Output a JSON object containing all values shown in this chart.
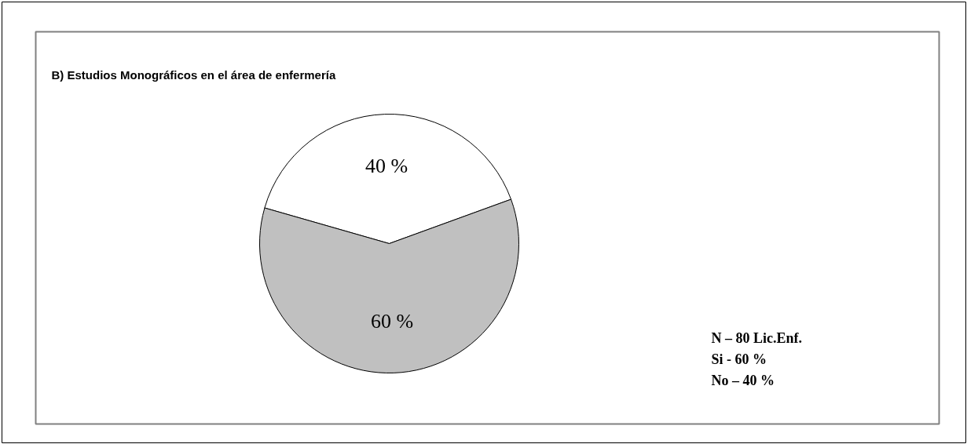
{
  "chart_data": {
    "type": "pie",
    "title": "B) Estudios Monográficos en el área de enfermería",
    "categories": [
      null,
      null
    ],
    "values": [
      40,
      60
    ],
    "colors": [
      "#ffffff",
      "#c0c0c0"
    ],
    "value_labels": [
      "40 %",
      "60 %"
    ],
    "annotations": [
      "N – 80 Lic.Enf.",
      "Si -  60 %",
      "No – 40 %"
    ]
  }
}
